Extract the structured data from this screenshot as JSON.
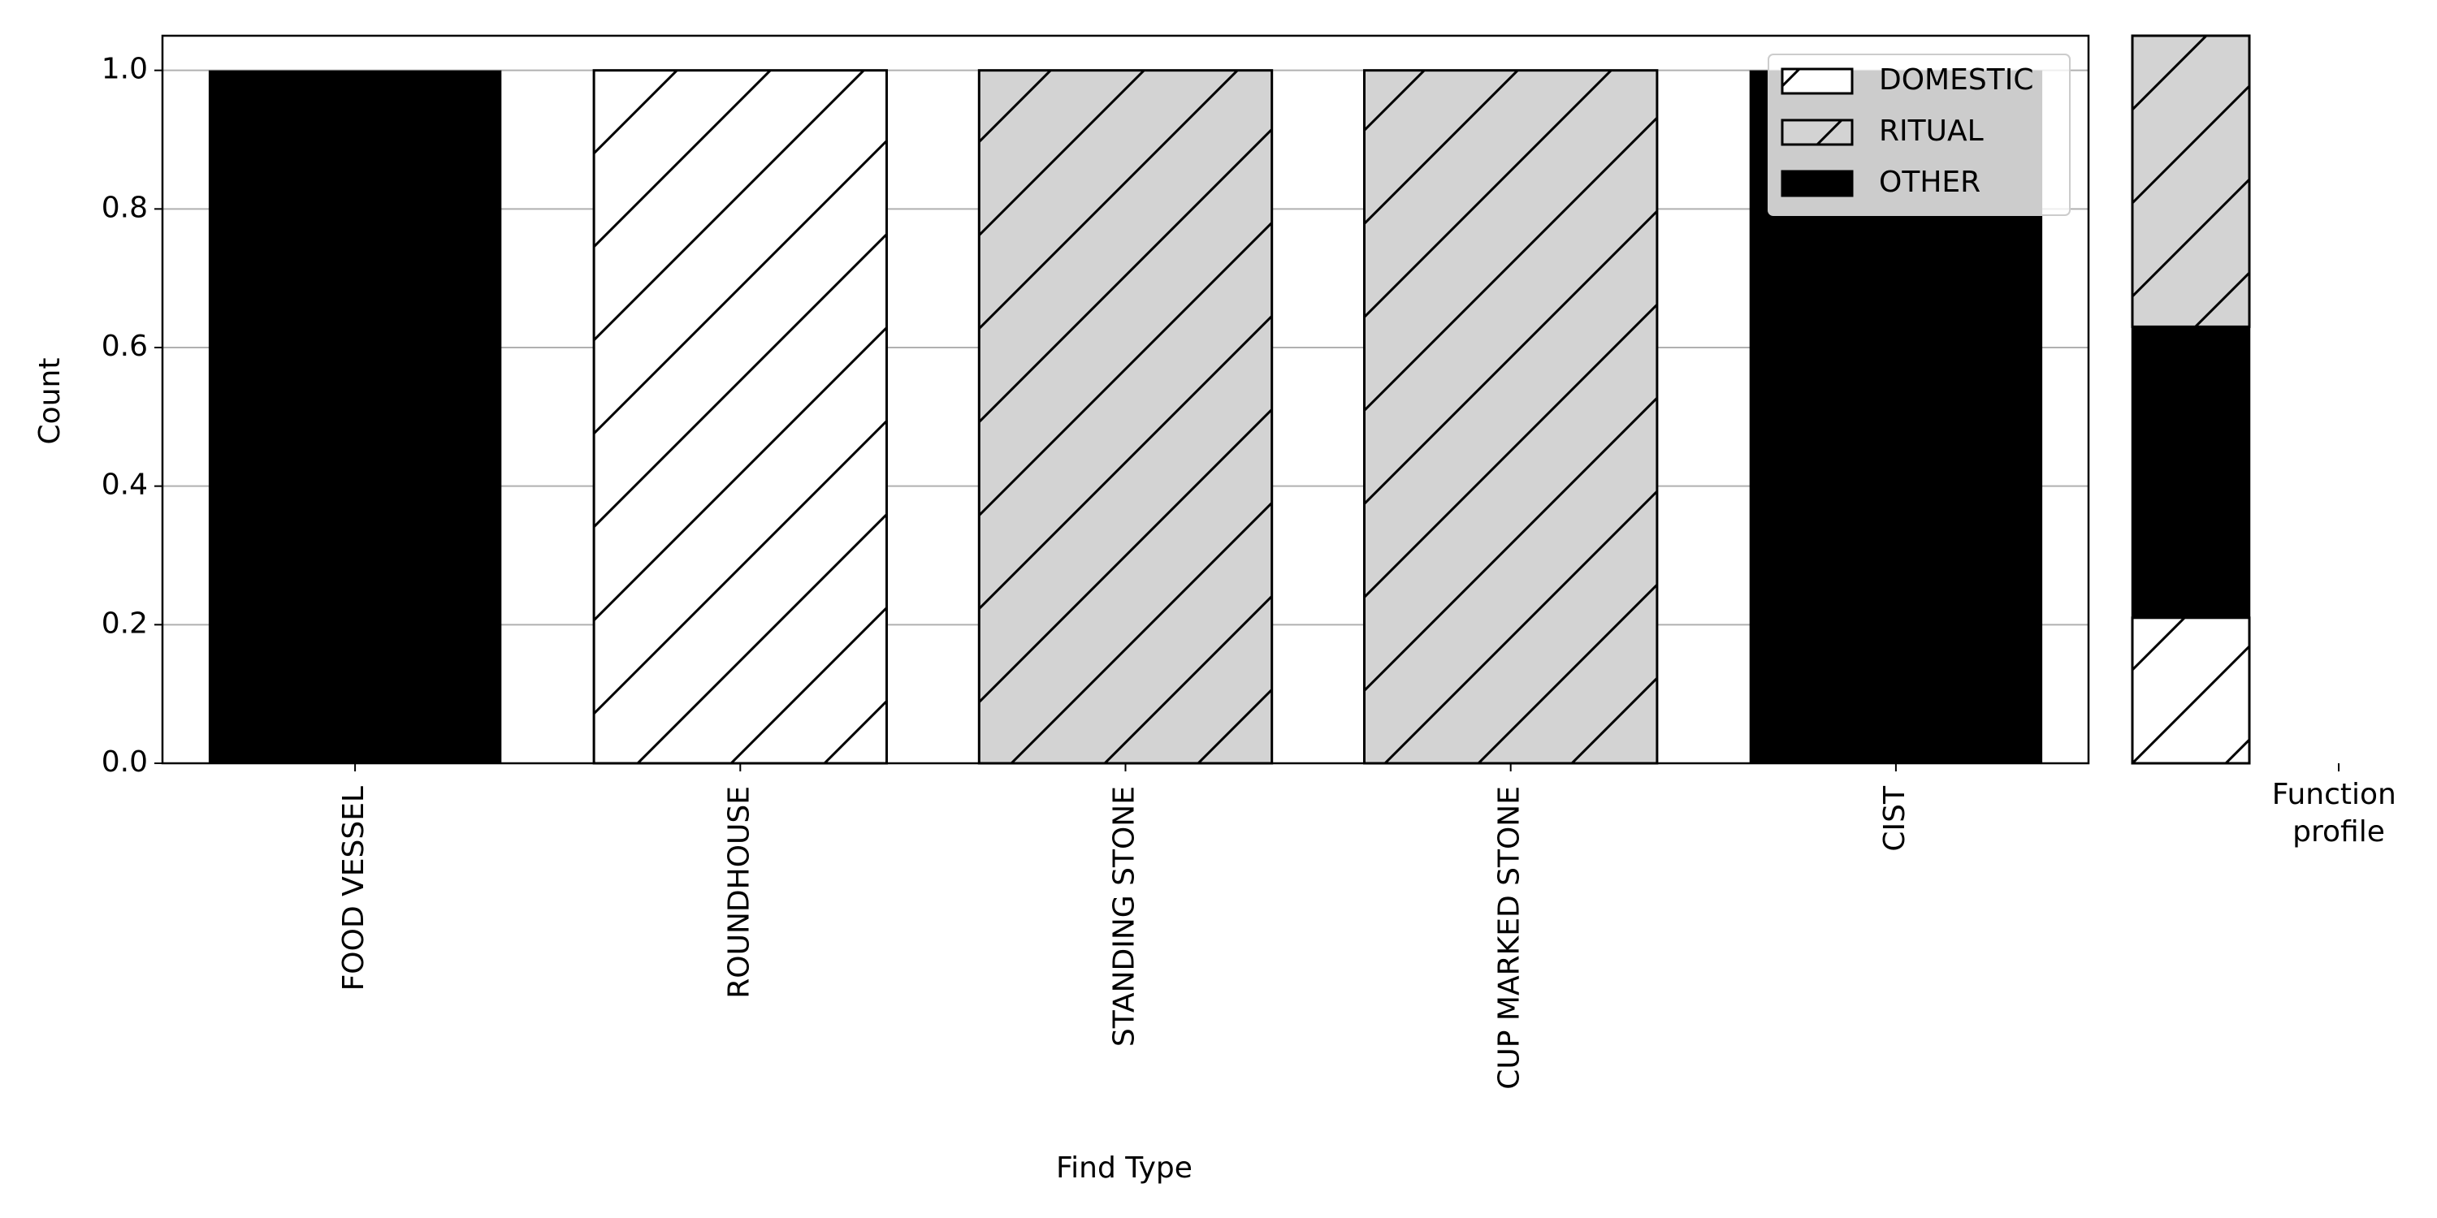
{
  "chart_data": [
    {
      "type": "bar",
      "stacked": true,
      "xlabel": "Find Type",
      "ylabel": "Count",
      "categories": [
        "FOOD VESSEL",
        "ROUNDHOUSE",
        "STANDING STONE",
        "CUP MARKED STONE",
        "CIST"
      ],
      "series": [
        {
          "name": "DOMESTIC",
          "color": "#ffffff",
          "hatch": "/",
          "values": [
            0,
            1,
            0,
            0,
            0
          ]
        },
        {
          "name": "RITUAL",
          "color": "#d3d3d3",
          "hatch": "/",
          "values": [
            0,
            0,
            1,
            1,
            0
          ]
        },
        {
          "name": "OTHER",
          "color": "#000000",
          "hatch": null,
          "values": [
            1,
            0,
            0,
            0,
            1
          ]
        }
      ],
      "ylim": [
        0,
        1.05
      ],
      "yticks": [
        {
          "value": 0,
          "label": "0.0"
        },
        0.2,
        0.4,
        0.6,
        0.8,
        {
          "value": 1,
          "label": "1.0"
        }
      ],
      "grid": true,
      "legend": "upper right"
    },
    {
      "type": "bar",
      "stacked": true,
      "categories": [
        "Function profile"
      ],
      "series": [
        {
          "color": "#ffffff",
          "hatch": "/",
          "values": [
            0.2
          ]
        },
        {
          "color": "#000000",
          "hatch": null,
          "values": [
            0.4
          ]
        },
        {
          "color": "#d3d3d3",
          "hatch": "/",
          "values": [
            0.4
          ]
        }
      ],
      "ylim": [
        0,
        1
      ]
    }
  ]
}
